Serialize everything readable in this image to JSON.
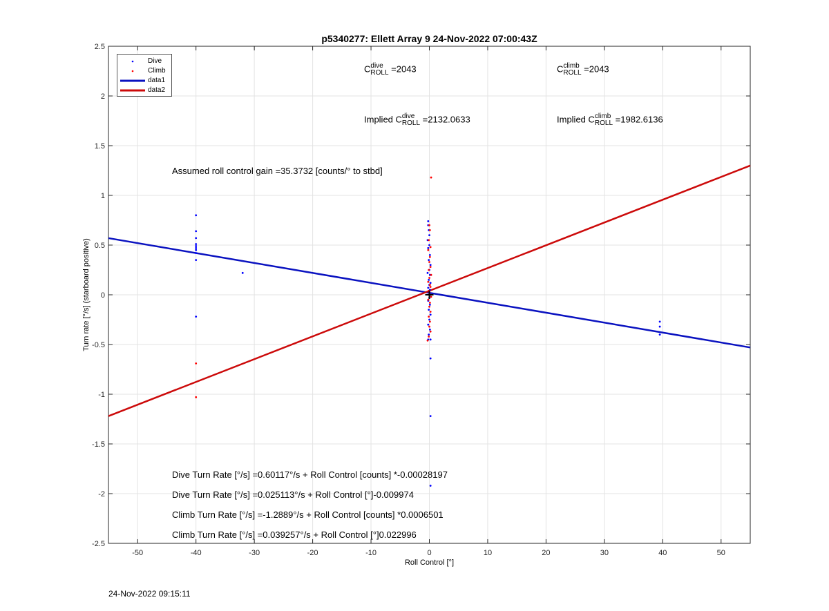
{
  "chart_data": {
    "type": "scatter",
    "title": "p5340277: Ellett Array 9 24-Nov-2022 07:00:43Z",
    "xlabel": "Roll Control [°]",
    "ylabel": "Turn rate [°/s] (starboard positive)",
    "xlim": [
      -55,
      55
    ],
    "ylim": [
      -2.5,
      2.5
    ],
    "xticks": [
      "-50",
      "-40",
      "-30",
      "-20",
      "-10",
      "0",
      "10",
      "20",
      "30",
      "40",
      "50"
    ],
    "xtick_values": [
      -50,
      -40,
      -30,
      -20,
      -10,
      0,
      10,
      20,
      30,
      40,
      50
    ],
    "yticks": [
      "2.5",
      "2",
      "1.5",
      "1",
      "0.5",
      "0",
      "-0.5",
      "-1",
      "-1.5",
      "-2",
      "-2.5"
    ],
    "ytick_values": [
      2.5,
      2,
      1.5,
      1,
      0.5,
      0,
      -0.5,
      -1,
      -1.5,
      -2,
      -2.5
    ],
    "grid": true,
    "legend_position": "top-left",
    "series": [
      {
        "name": "Dive",
        "kind": "points",
        "color": "#0000ff",
        "points": [
          [
            -40,
            0.8
          ],
          [
            -40,
            0.64
          ],
          [
            -40,
            0.57
          ],
          [
            -40,
            0.51
          ],
          [
            -40,
            0.49
          ],
          [
            -40,
            0.47
          ],
          [
            -40,
            0.45
          ],
          [
            -40,
            0.42
          ],
          [
            -40,
            0.35
          ],
          [
            -40,
            -0.22
          ],
          [
            -32,
            0.22
          ],
          [
            -0.2,
            0.74
          ],
          [
            -0.2,
            0.7
          ],
          [
            -0.1,
            0.65
          ],
          [
            0,
            0.6
          ],
          [
            -0.3,
            0.55
          ],
          [
            0,
            0.5
          ],
          [
            -0.2,
            0.47
          ],
          [
            0.1,
            0.4
          ],
          [
            -0.1,
            0.35
          ],
          [
            0.2,
            0.3
          ],
          [
            0,
            0.25
          ],
          [
            -0.3,
            0.22
          ],
          [
            0.1,
            0.2
          ],
          [
            -0.1,
            0.15
          ],
          [
            0.2,
            0.12
          ],
          [
            0,
            0.1
          ],
          [
            -0.2,
            0.07
          ],
          [
            0.1,
            0.05
          ],
          [
            -0.1,
            0.02
          ],
          [
            0.2,
            0.0
          ],
          [
            0,
            -0.03
          ],
          [
            -0.2,
            -0.06
          ],
          [
            0.1,
            -0.1
          ],
          [
            -0.1,
            -0.15
          ],
          [
            0.2,
            -0.2
          ],
          [
            0,
            -0.25
          ],
          [
            -0.2,
            -0.3
          ],
          [
            0.1,
            -0.35
          ],
          [
            -0.1,
            -0.4
          ],
          [
            0.2,
            -0.45
          ],
          [
            -0.2,
            -0.45
          ],
          [
            0.2,
            -0.64
          ],
          [
            0.2,
            -1.22
          ],
          [
            0.2,
            -1.92
          ],
          [
            39.5,
            -0.27
          ],
          [
            39.5,
            -0.32
          ],
          [
            39.5,
            -0.4
          ]
        ]
      },
      {
        "name": "Climb",
        "kind": "points",
        "color": "#ff0000",
        "points": [
          [
            0.3,
            1.18
          ],
          [
            0,
            0.7
          ],
          [
            0.1,
            0.65
          ],
          [
            -0.1,
            0.55
          ],
          [
            0.2,
            0.48
          ],
          [
            -0.2,
            0.45
          ],
          [
            0.1,
            0.38
          ],
          [
            0,
            0.33
          ],
          [
            0.2,
            0.28
          ],
          [
            -0.1,
            0.25
          ],
          [
            0.3,
            0.2
          ],
          [
            0,
            0.17
          ],
          [
            -0.2,
            0.13
          ],
          [
            0.1,
            0.1
          ],
          [
            0.2,
            0.08
          ],
          [
            -0.1,
            0.04
          ],
          [
            0,
            0.02
          ],
          [
            0.3,
            -0.02
          ],
          [
            -0.2,
            -0.05
          ],
          [
            0.1,
            -0.08
          ],
          [
            0,
            -0.12
          ],
          [
            0.2,
            -0.17
          ],
          [
            -0.1,
            -0.22
          ],
          [
            0.1,
            -0.27
          ],
          [
            0,
            -0.32
          ],
          [
            0.2,
            -0.37
          ],
          [
            -0.1,
            -0.42
          ],
          [
            -0.3,
            -0.46
          ],
          [
            -40,
            -0.69
          ],
          [
            -40,
            -1.03
          ]
        ]
      },
      {
        "name": "data1",
        "kind": "line",
        "color": "#0a12c0",
        "x": [
          -55,
          55
        ],
        "y": [
          0.57,
          -0.53
        ]
      },
      {
        "name": "data2",
        "kind": "line",
        "color": "#cc0a0a",
        "x": [
          -55,
          55
        ],
        "y": [
          -1.22,
          1.3
        ]
      }
    ],
    "center_marker": {
      "x": 0,
      "y": 0,
      "color": "#000000"
    },
    "annotations": {
      "c_roll_dive": {
        "symbol": "C",
        "sup": "dive",
        "sub": "ROLL",
        "value": "=2043"
      },
      "c_roll_climb": {
        "symbol": "C",
        "sup": "climb",
        "sub": "ROLL",
        "value": "=2043"
      },
      "implied_dive": {
        "prefix": "Implied C",
        "sup": "dive",
        "sub": "ROLL",
        "value": "=2132.0633"
      },
      "implied_climb": {
        "prefix": "Implied C",
        "sup": "climb",
        "sub": "ROLL",
        "value": "=1982.6136"
      },
      "gain": "Assumed roll control gain =35.3732 [counts/° to stbd]",
      "fit_lines": [
        "Dive Turn Rate [°/s] =0.60117°/s + Roll Control [counts] *-0.00028197",
        "Dive Turn Rate [°/s] =0.025113°/s + Roll Control [°]-0.009974",
        "Climb Turn Rate [°/s] =-1.2889°/s + Roll Control [counts] *0.0006501",
        "Climb Turn Rate [°/s] =0.039257°/s + Roll Control [°]0.022996"
      ]
    }
  },
  "footer_date": "24-Nov-2022 09:15:11"
}
